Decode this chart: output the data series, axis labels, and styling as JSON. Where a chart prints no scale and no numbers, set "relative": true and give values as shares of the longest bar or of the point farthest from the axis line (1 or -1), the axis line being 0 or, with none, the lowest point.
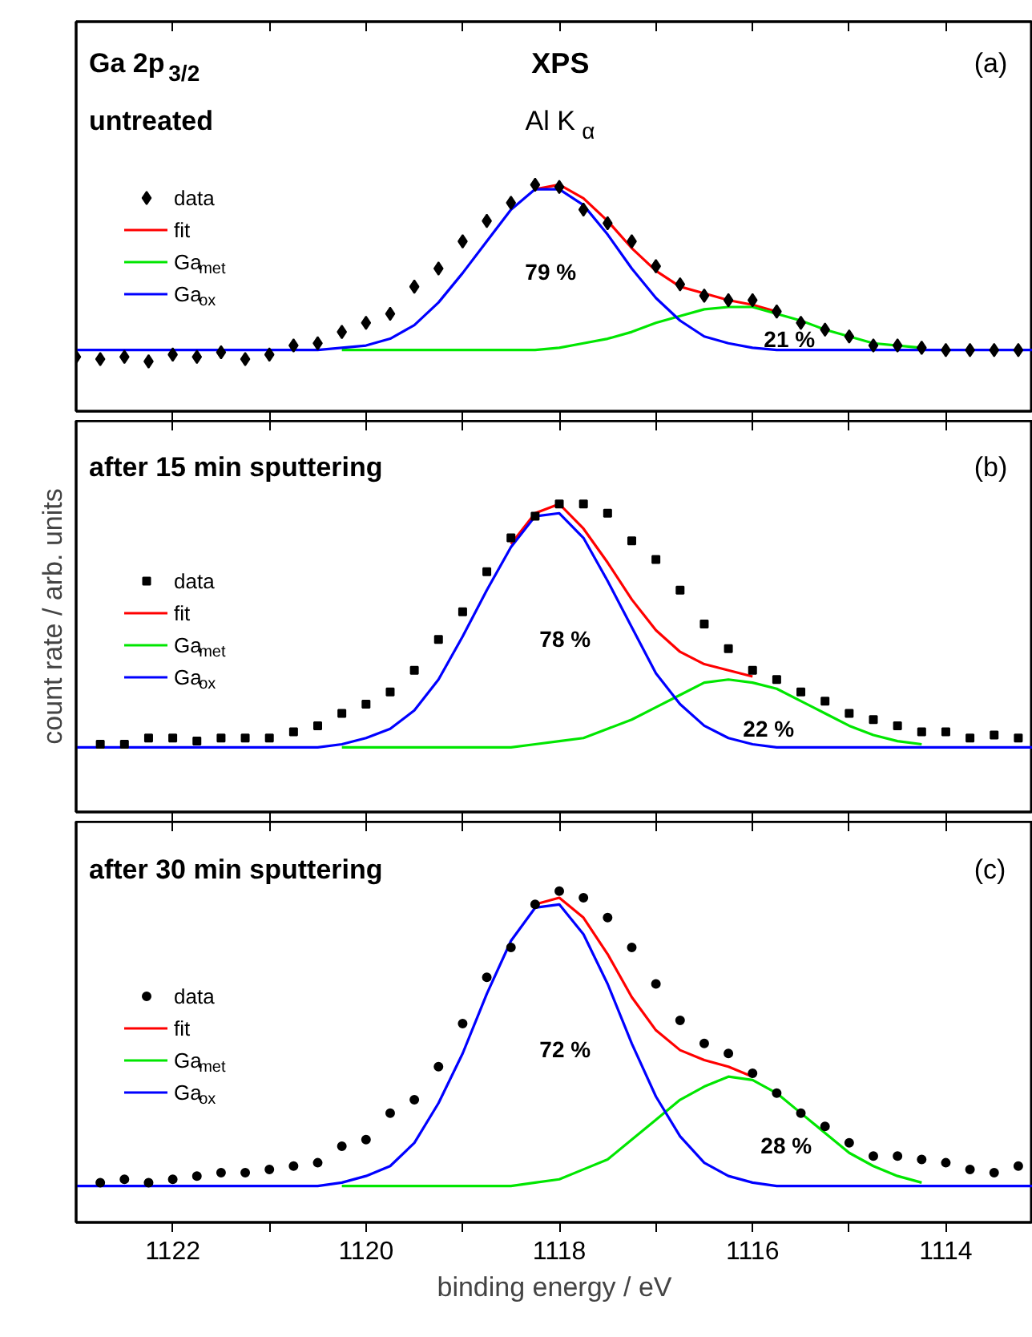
{
  "chart_data": [
    {
      "type": "line",
      "title": "Ga 2p$_{3/2}$",
      "subtitle": "untreated",
      "relative": true,
      "legend": "left",
      "tick_labels": false,
      "annotations": [
        "(a)",
        "XPS",
        "Al K$_{α}$",
        "79 %",
        "21 %"
      ],
      "xlim": [
        1123,
        1113.1
      ],
      "xticks": [
        1122,
        {
          "value": 1121,
          "label": null
        },
        1120,
        {
          "value": 1119,
          "label": null
        },
        1118,
        {
          "value": 1117,
          "label": null
        },
        1116,
        {
          "value": 1115,
          "label": null
        },
        1114
      ],
      "x": [
        1123,
        1122,
        1121,
        1120.75,
        1120.5,
        1120.25,
        1120,
        1119.75,
        1119.5,
        1119.25,
        1119,
        1118.75,
        1118.5,
        1118.25,
        1118,
        1117.75,
        1117.5,
        1117.25,
        1117,
        1116.75,
        1116.5,
        1116.25,
        1116,
        1115.75,
        1115.5,
        1115.25,
        1115,
        1114.75,
        1114.5,
        1114.25,
        1114,
        1113.1
      ],
      "series": [
        {
          "name": "data",
          "type": "scatter",
          "marker": "diamond",
          "color": "#000000",
          "x": [
            1123,
            1122.75,
            1122.5,
            1122.25,
            1122,
            1121.75,
            1121.5,
            1121.25,
            1121,
            1120.75,
            1120.5,
            1120.25,
            1120,
            1119.75,
            1119.5,
            1119.25,
            1119,
            1118.75,
            1118.5,
            1118.25,
            1118,
            1117.75,
            1117.5,
            1117.25,
            1117,
            1116.75,
            1116.5,
            1116.25,
            1116,
            1115.75,
            1115.5,
            1115.25,
            1115,
            1114.75,
            1114.5,
            1114.25,
            1114,
            1113.75,
            1113.5,
            1113.25
          ],
          "values": [
            0.24,
            0.23,
            0.24,
            0.22,
            0.25,
            0.24,
            0.26,
            0.23,
            0.25,
            0.29,
            0.3,
            0.35,
            0.39,
            0.43,
            0.55,
            0.63,
            0.75,
            0.84,
            0.92,
            1.0,
            0.99,
            0.89,
            0.83,
            0.75,
            0.64,
            0.56,
            0.51,
            0.49,
            0.49,
            0.44,
            0.39,
            0.36,
            0.33,
            0.29,
            0.29,
            0.28,
            0.27,
            0.27,
            0.27,
            0.27
          ]
        },
        {
          "name": "fit",
          "color": "#ff0000",
          "values": [
            null,
            null,
            null,
            null,
            null,
            null,
            null,
            null,
            null,
            null,
            null,
            null,
            null,
            0.98,
            1.0,
            0.94,
            0.84,
            0.72,
            0.62,
            0.55,
            0.52,
            0.49,
            0.47,
            0.44,
            null,
            null,
            null,
            null,
            null,
            null,
            null,
            null
          ]
        },
        {
          "name": "Ga$_{met}$",
          "color": "#00e600",
          "values": [
            null,
            null,
            null,
            null,
            null,
            0.27,
            0.27,
            0.27,
            0.27,
            0.27,
            0.27,
            0.27,
            0.27,
            0.27,
            0.28,
            0.3,
            0.32,
            0.35,
            0.39,
            0.42,
            0.45,
            0.46,
            0.46,
            0.43,
            0.4,
            0.36,
            0.33,
            0.3,
            0.29,
            0.28,
            null,
            null
          ]
        },
        {
          "name": "Ga$_{ox}$",
          "color": "#0000ff",
          "values": [
            0.27,
            0.27,
            0.27,
            0.27,
            0.27,
            0.28,
            0.29,
            0.32,
            0.38,
            0.48,
            0.61,
            0.75,
            0.89,
            0.98,
            0.98,
            0.91,
            0.78,
            0.63,
            0.5,
            0.4,
            0.33,
            0.3,
            0.28,
            0.27,
            0.27,
            0.27,
            0.27,
            0.27,
            0.27,
            0.27,
            0.27,
            0.27
          ]
        }
      ]
    },
    {
      "type": "line",
      "title": "after 15 min sputtering",
      "ylabel": "count rate / arb. units",
      "relative": true,
      "legend": "left",
      "tick_labels": false,
      "annotations": [
        "(b)",
        "78 %",
        "22 %"
      ],
      "xlim": [
        1123,
        1113.1
      ],
      "xticks": [
        1122,
        {
          "value": 1121,
          "label": null
        },
        1120,
        {
          "value": 1119,
          "label": null
        },
        1118,
        {
          "value": 1117,
          "label": null
        },
        1116,
        {
          "value": 1115,
          "label": null
        },
        1114
      ],
      "x": [
        1123,
        1122,
        1121,
        1120.75,
        1120.5,
        1120.25,
        1120,
        1119.75,
        1119.5,
        1119.25,
        1119,
        1118.75,
        1118.5,
        1118.25,
        1118,
        1117.75,
        1117.5,
        1117.25,
        1117,
        1116.75,
        1116.5,
        1116.25,
        1116,
        1115.75,
        1115.5,
        1115.25,
        1115,
        1114.75,
        1114.5,
        1114.25,
        1114,
        1113.1
      ],
      "series": [
        {
          "name": "data",
          "type": "scatter",
          "marker": "square",
          "color": "#000000",
          "x": [
            1122.75,
            1122.5,
            1122.25,
            1122,
            1121.75,
            1121.5,
            1121.25,
            1121,
            1120.75,
            1120.5,
            1120.25,
            1120,
            1119.75,
            1119.5,
            1119.25,
            1119,
            1118.75,
            1118.5,
            1118.25,
            1118,
            1117.75,
            1117.5,
            1117.25,
            1117,
            1116.75,
            1116.5,
            1116.25,
            1116,
            1115.75,
            1115.5,
            1115.25,
            1115,
            1114.75,
            1114.5,
            1114.25,
            1114,
            1113.75,
            1113.5,
            1113.25
          ],
          "values": [
            0.22,
            0.22,
            0.24,
            0.24,
            0.23,
            0.24,
            0.24,
            0.24,
            0.26,
            0.28,
            0.32,
            0.35,
            0.39,
            0.46,
            0.56,
            0.65,
            0.78,
            0.89,
            0.96,
            1.0,
            1.0,
            0.97,
            0.88,
            0.82,
            0.72,
            0.61,
            0.53,
            0.46,
            0.43,
            0.39,
            0.36,
            0.32,
            0.3,
            0.28,
            0.26,
            0.26,
            0.24,
            0.25,
            0.24
          ]
        },
        {
          "name": "fit",
          "color": "#ff0000",
          "values": [
            null,
            null,
            null,
            null,
            null,
            null,
            null,
            null,
            null,
            null,
            null,
            null,
            0.87,
            0.97,
            1.0,
            0.92,
            0.81,
            0.69,
            0.59,
            0.52,
            0.48,
            0.46,
            0.44,
            null,
            null,
            null,
            null,
            null,
            null,
            null,
            null,
            null
          ]
        },
        {
          "name": "Ga$_{met}$",
          "color": "#00e600",
          "values": [
            null,
            null,
            null,
            null,
            null,
            0.21,
            0.21,
            0.21,
            0.21,
            0.21,
            0.21,
            0.21,
            0.21,
            0.22,
            0.23,
            0.24,
            0.27,
            0.3,
            0.34,
            0.38,
            0.42,
            0.43,
            0.42,
            0.4,
            0.36,
            0.32,
            0.28,
            0.25,
            0.23,
            0.22,
            null,
            null
          ]
        },
        {
          "name": "Ga$_{ox}$",
          "color": "#0000ff",
          "values": [
            0.21,
            0.21,
            0.21,
            0.21,
            0.21,
            0.22,
            0.24,
            0.27,
            0.33,
            0.43,
            0.57,
            0.72,
            0.86,
            0.96,
            0.97,
            0.89,
            0.75,
            0.6,
            0.45,
            0.35,
            0.28,
            0.24,
            0.22,
            0.21,
            0.21,
            0.21,
            0.21,
            0.21,
            0.21,
            0.21,
            0.21,
            0.21
          ]
        }
      ]
    },
    {
      "type": "line",
      "title": "after 30 min sputtering",
      "xlabel": "binding energy / eV",
      "relative": true,
      "legend": "left",
      "tick_labels": "x",
      "annotations": [
        "(c)",
        "72 %",
        "28 %"
      ],
      "xlim": [
        1123,
        1113.1
      ],
      "xticks": [
        1122,
        {
          "value": 1121,
          "label": null
        },
        1120,
        {
          "value": 1119,
          "label": null
        },
        1118,
        {
          "value": 1117,
          "label": null
        },
        1116,
        {
          "value": 1115,
          "label": null
        },
        1114
      ],
      "x": [
        1123,
        1122,
        1121,
        1120.75,
        1120.5,
        1120.25,
        1120,
        1119.75,
        1119.5,
        1119.25,
        1119,
        1118.75,
        1118.5,
        1118.25,
        1118,
        1117.75,
        1117.5,
        1117.25,
        1117,
        1116.75,
        1116.5,
        1116.25,
        1116,
        1115.75,
        1115.5,
        1115.25,
        1115,
        1114.75,
        1114.5,
        1114.25,
        1114,
        1113.1
      ],
      "series": [
        {
          "name": "data",
          "type": "scatter",
          "marker": "circle",
          "color": "#000000",
          "x": [
            1122.75,
            1122.5,
            1122.25,
            1122,
            1121.75,
            1121.5,
            1121.25,
            1121,
            1120.75,
            1120.5,
            1120.25,
            1120,
            1119.75,
            1119.5,
            1119.25,
            1119,
            1118.75,
            1118.5,
            1118.25,
            1118,
            1117.75,
            1117.5,
            1117.25,
            1117,
            1116.75,
            1116.5,
            1116.25,
            1116,
            1115.75,
            1115.5,
            1115.25,
            1115,
            1114.75,
            1114.5,
            1114.25,
            1114,
            1113.75,
            1113.5,
            1113.25
          ],
          "values": [
            0.12,
            0.13,
            0.12,
            0.13,
            0.14,
            0.15,
            0.15,
            0.16,
            0.17,
            0.18,
            0.23,
            0.25,
            0.33,
            0.37,
            0.47,
            0.6,
            0.74,
            0.83,
            0.96,
            1.0,
            0.98,
            0.92,
            0.83,
            0.72,
            0.61,
            0.54,
            0.51,
            0.45,
            0.39,
            0.33,
            0.29,
            0.24,
            0.2,
            0.2,
            0.19,
            0.18,
            0.16,
            0.15,
            0.17
          ]
        },
        {
          "name": "fit",
          "color": "#ff0000",
          "values": [
            null,
            null,
            null,
            null,
            null,
            null,
            null,
            null,
            null,
            null,
            null,
            null,
            null,
            0.96,
            0.98,
            0.92,
            0.81,
            0.68,
            0.58,
            0.52,
            0.49,
            0.47,
            0.44,
            null,
            null,
            null,
            null,
            null,
            null,
            null,
            null,
            null
          ]
        },
        {
          "name": "Ga$_{met}$",
          "color": "#00e600",
          "values": [
            null,
            null,
            null,
            null,
            null,
            0.11,
            0.11,
            0.11,
            0.11,
            0.11,
            0.11,
            0.11,
            0.11,
            0.12,
            0.13,
            0.16,
            0.19,
            0.25,
            0.31,
            0.37,
            0.41,
            0.44,
            0.43,
            0.39,
            0.33,
            0.27,
            0.21,
            0.17,
            0.14,
            0.12,
            null,
            null
          ]
        },
        {
          "name": "Ga$_{ox}$",
          "color": "#0000ff",
          "values": [
            0.11,
            0.11,
            0.11,
            0.11,
            0.11,
            0.12,
            0.14,
            0.17,
            0.24,
            0.36,
            0.51,
            0.69,
            0.85,
            0.95,
            0.96,
            0.87,
            0.72,
            0.54,
            0.38,
            0.26,
            0.18,
            0.14,
            0.12,
            0.11,
            0.11,
            0.11,
            0.11,
            0.11,
            0.11,
            0.11,
            0.11,
            0.11
          ]
        }
      ]
    }
  ]
}
